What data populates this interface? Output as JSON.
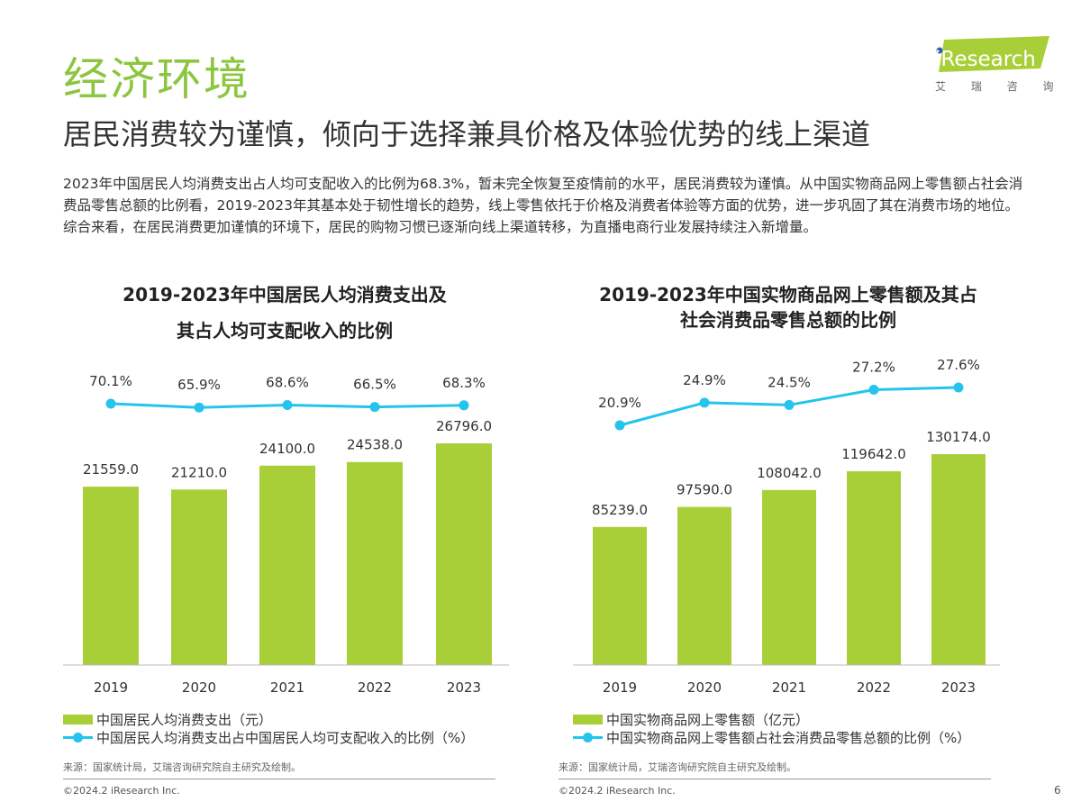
{
  "section_title": "经济环境",
  "headline": "居民消费较为谨慎，倾向于选择兼具价格及体验优势的线上渠道",
  "summary": "2023年中国居民人均消费支出占人均可支配收入的比例为68.3%，暂未完全恢复至疫情前的水平，居民消费较为谨慎。从中国实物商品网上零售额占社会消费品零售总额的比例看，2019-2023年其基本处于韧性增长的趋势，线上零售依托于价格及消费者体验等方面的优势，进一步巩固了其在消费市场的地位。综合来看，在居民消费更加谨慎的环境下，居民的购物习惯已逐渐向线上渠道转移，为直播电商行业发展持续注入新增量。",
  "logo": {
    "brand": "iResearch",
    "cn": "艾 瑞 咨 询",
    "color": "#a9cf38"
  },
  "colors": {
    "bar": "#a9cf38",
    "line": "#24c4ec",
    "title_green": "#8cc63f"
  },
  "chart_data": [
    {
      "type": "bar+line",
      "title_lines": [
        "2019-2023年中国居民人均消费支出及",
        "其占人均可支配收入的比例"
      ],
      "categories": [
        "2019",
        "2020",
        "2021",
        "2022",
        "2023"
      ],
      "series": [
        {
          "name": "中国居民人均消费支出（元）",
          "type": "bar",
          "values": [
            21559.0,
            21210.0,
            24100.0,
            24538.0,
            26796.0
          ],
          "labels": [
            "21559.0",
            "21210.0",
            "24100.0",
            "24538.0",
            "26796.0"
          ]
        },
        {
          "name": "中国居民人均消费支出占中国居民人均可支配收入的比例（%）",
          "type": "line",
          "values": [
            70.1,
            65.9,
            68.6,
            66.5,
            68.3
          ],
          "labels": [
            "70.1%",
            "65.9%",
            "68.6%",
            "66.5%",
            "68.3%"
          ]
        }
      ],
      "source": "来源：国家统计局，艾瑞咨询研究院自主研究及绘制。",
      "copyright": "©2024.2 iResearch Inc."
    },
    {
      "type": "bar+line",
      "title_lines": [
        "2019-2023年中国实物商品网上零售额及其占",
        "社会消费品零售总额的比例"
      ],
      "categories": [
        "2019",
        "2020",
        "2021",
        "2022",
        "2023"
      ],
      "series": [
        {
          "name": "中国实物商品网上零售额（亿元）",
          "type": "bar",
          "values": [
            85239.0,
            97590.0,
            108042.0,
            119642.0,
            130174.0
          ],
          "labels": [
            "85239.0",
            "97590.0",
            "108042.0",
            "119642.0",
            "130174.0"
          ]
        },
        {
          "name": "中国实物商品网上零售额占社会消费品零售总额的比例（%）",
          "type": "line",
          "values": [
            20.9,
            24.9,
            24.5,
            27.2,
            27.6
          ],
          "labels": [
            "20.9%",
            "24.9%",
            "24.5%",
            "27.2%",
            "27.6%"
          ]
        }
      ],
      "source": "来源：国家统计局，艾瑞咨询研究院自主研究及绘制。",
      "copyright": "©2024.2 iResearch Inc."
    }
  ],
  "page_number": "6"
}
